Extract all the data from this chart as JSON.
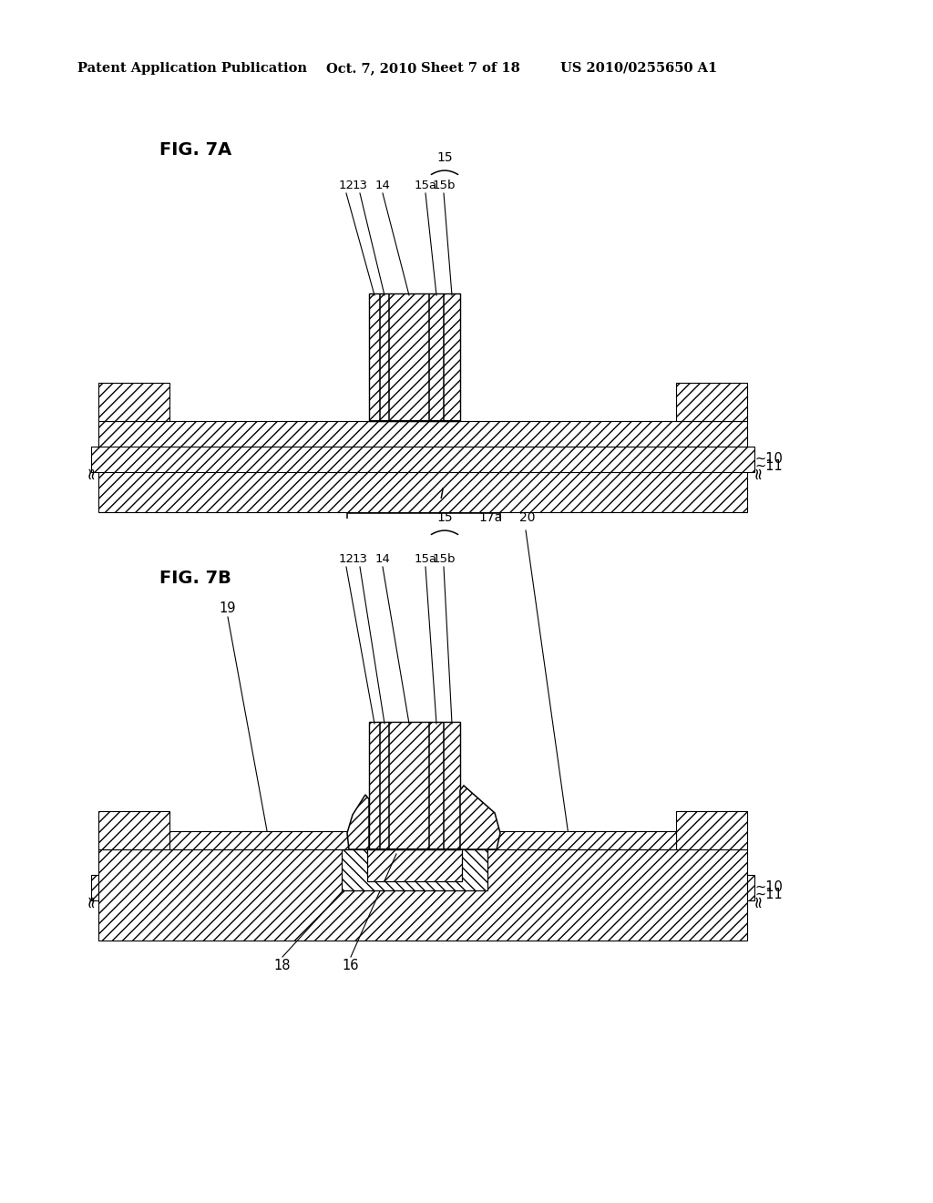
{
  "bg_color": "#ffffff",
  "line_color": "#000000",
  "header_text": "Patent Application Publication",
  "header_date": "Oct. 7, 2010",
  "header_sheet": "Sheet 7 of 18",
  "header_patent": "US 2010/0255650 A1",
  "fig7a_label": "FIG. 7A",
  "fig7b_label": "FIG. 7B"
}
